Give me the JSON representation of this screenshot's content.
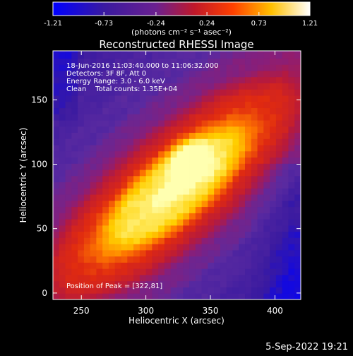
{
  "colorbar": {
    "ticks": [
      "-1.21",
      "-0.73",
      "-0.24",
      "0.24",
      "0.73",
      "1.21"
    ],
    "unit_label": "(photons cm⁻² s⁻¹ asec⁻²)",
    "range": [
      -1.21,
      1.21
    ]
  },
  "chart_data": {
    "type": "heatmap",
    "title": "Reconstructed RHESSI Image",
    "xlabel": "Heliocentric X (arcsec)",
    "ylabel": "Heliocentric Y (arcsec)",
    "xlim": [
      228,
      420
    ],
    "ylim": [
      -5,
      188
    ],
    "xticks": [
      250,
      300,
      350,
      400
    ],
    "yticks": [
      0,
      50,
      100,
      150
    ],
    "colormap": [
      "#0000ff",
      "#3a1aa0",
      "#5a2aa0",
      "#8a1e78",
      "#b81a3a",
      "#e02a10",
      "#ff7a00",
      "#ffd000",
      "#ffffb0"
    ],
    "peak": [
      322,
      81
    ],
    "info_lines": [
      "18-Jun-2016 11:03:40.000 to 11:06:32.000",
      "Detectors: 3F 8F, Att 0",
      "Energy Range: 3.0 - 6.0 keV",
      "Clean    Total counts: 1.35E+04"
    ],
    "peak_label": "Position of Peak = [322,81]"
  },
  "footer": {
    "date": "5-Sep-2022 19:21"
  }
}
